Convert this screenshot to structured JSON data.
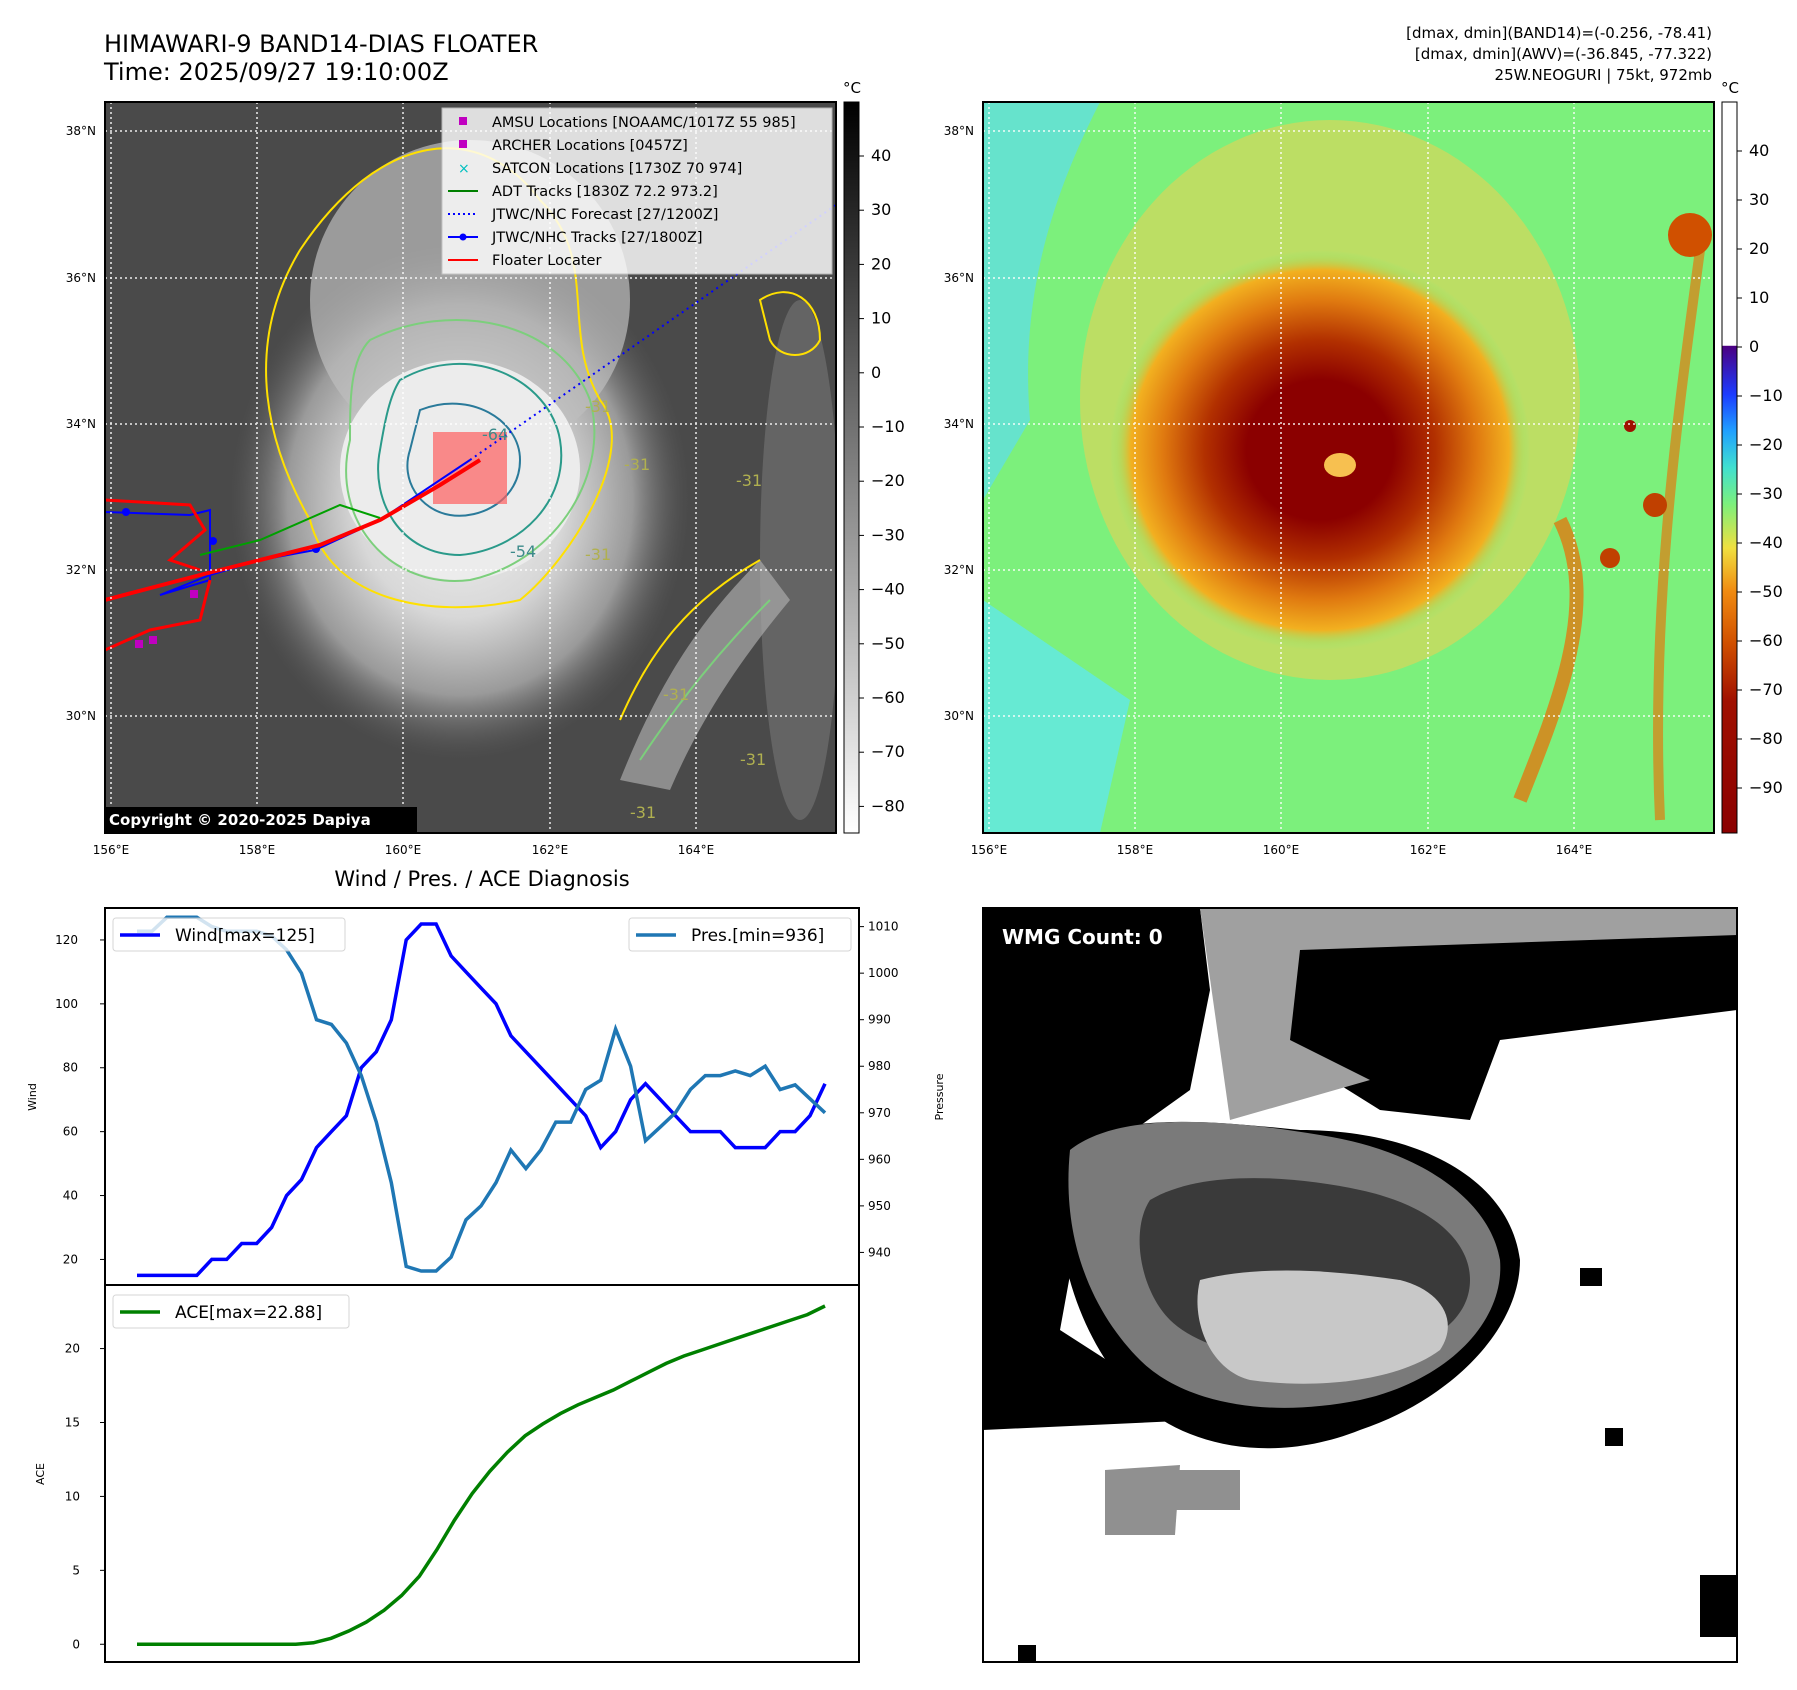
{
  "header": {
    "title": "HIMAWARI-9 BAND14-DIAS FLOATER",
    "time": "Time: 2025/09/27 19:10:00Z",
    "info_line1": "[dmax, dmin](BAND14)=(-0.256, -78.41)",
    "info_line2": "[dmax, dmin](AWV)=(-36.845, -77.322)",
    "info_line3": "25W.NEOGURI | 75kt, 972mb"
  },
  "map": {
    "lat_labels": [
      "38°N",
      "36°N",
      "34°N",
      "32°N",
      "30°N"
    ],
    "lon_labels": [
      "156°E",
      "158°E",
      "160°E",
      "162°E",
      "164°E"
    ],
    "copyright": "Copyright © 2020-2025 Dapiya",
    "contour_labels": [
      "-64",
      "-54",
      "-31",
      "-31",
      "-31",
      "-31",
      "-31",
      "-31",
      "-31"
    ],
    "legend": [
      {
        "label": "AMSU Locations [NOAAMC/1017Z 55 985]",
        "color": "#c000c0",
        "marker": "square"
      },
      {
        "label": "ARCHER Locations [0457Z]",
        "color": "#c000c0",
        "marker": "square"
      },
      {
        "label": "SATCON Locations [1730Z 70 974]",
        "color": "#00c0c0",
        "marker": "x"
      },
      {
        "label": "ADT Tracks [1830Z 72.2 973.2]",
        "color": "#008000",
        "marker": "line"
      },
      {
        "label": "JTWC/NHC Forecast [27/1200Z]",
        "color": "#0000ff",
        "marker": "dotted"
      },
      {
        "label": "JTWC/NHC Tracks [27/1800Z]",
        "color": "#0000ff",
        "marker": "line-dot"
      },
      {
        "label": "Floater Locater",
        "color": "#ff0000",
        "marker": "line"
      }
    ],
    "colorbar_unit": "°C",
    "colorbar_ticks_gray": [
      "40",
      "30",
      "20",
      "10",
      "0",
      "−10",
      "−20",
      "−30",
      "−40",
      "−50",
      "−60",
      "−70",
      "−80"
    ],
    "colorbar_ticks_color": [
      "40",
      "30",
      "20",
      "10",
      "0",
      "−10",
      "−20",
      "−30",
      "−40",
      "−50",
      "−60",
      "−70",
      "−80",
      "−90"
    ]
  },
  "diagnosis": {
    "title": "Wind / Pres. / ACE Diagnosis",
    "wind_legend": "Wind[max=125]",
    "pres_legend": "Pres.[min=936]",
    "ace_legend": "ACE[max=22.88]",
    "wind_ylabel": "Wind",
    "pres_ylabel": "Pressure",
    "ace_ylabel": "ACE",
    "wind_ticks": [
      "120",
      "100",
      "80",
      "60",
      "40",
      "20"
    ],
    "pres_ticks": [
      "1010",
      "1000",
      "990",
      "980",
      "970",
      "960",
      "950",
      "940"
    ],
    "ace_ticks": [
      "20",
      "15",
      "10",
      "5",
      "0"
    ]
  },
  "wmg": {
    "label": "WMG Count: 0"
  },
  "colors": {
    "wind": "#0000ff",
    "pressure": "#1f77b4",
    "ace": "#008000"
  },
  "chart_data": [
    {
      "type": "line",
      "title": "Wind / Pres. / ACE Diagnosis",
      "ylabel": "Wind",
      "ylim": [
        12,
        130
      ],
      "series": [
        {
          "name": "Wind[max=125]",
          "values": [
            15,
            15,
            15,
            15,
            15,
            20,
            20,
            25,
            25,
            30,
            40,
            45,
            55,
            60,
            65,
            80,
            85,
            95,
            120,
            125,
            125,
            115,
            110,
            105,
            100,
            90,
            85,
            80,
            75,
            70,
            65,
            55,
            60,
            70,
            75,
            70,
            65,
            60,
            60,
            60,
            55,
            55,
            55,
            60,
            60,
            65,
            75
          ]
        },
        {
          "name": "Pres.[min=936]",
          "values": [
            1009,
            1009,
            1012,
            1012,
            1012,
            1010,
            1009,
            1009,
            1009,
            1008,
            1005,
            1000,
            990,
            989,
            985,
            978,
            968,
            955,
            937,
            936,
            936,
            939,
            947,
            950,
            955,
            962,
            958,
            962,
            968,
            968,
            975,
            977,
            988,
            980,
            964,
            967,
            970,
            975,
            978,
            978,
            979,
            978,
            980,
            975,
            976,
            973,
            970
          ]
        }
      ],
      "y2label": "Pressure",
      "y2lim": [
        933,
        1014
      ]
    },
    {
      "type": "line",
      "ylabel": "ACE",
      "ylim": [
        -1.2,
        24.3
      ],
      "series": [
        {
          "name": "ACE[max=22.88]",
          "values": [
            0,
            0,
            0,
            0,
            0,
            0,
            0,
            0,
            0,
            0,
            0.1,
            0.4,
            0.9,
            1.5,
            2.3,
            3.3,
            4.6,
            6.4,
            8.4,
            10.2,
            11.7,
            13.0,
            14.1,
            14.9,
            15.6,
            16.2,
            16.7,
            17.2,
            17.8,
            18.4,
            19.0,
            19.5,
            19.9,
            20.3,
            20.7,
            21.1,
            21.5,
            21.9,
            22.3,
            22.88
          ]
        }
      ]
    }
  ]
}
